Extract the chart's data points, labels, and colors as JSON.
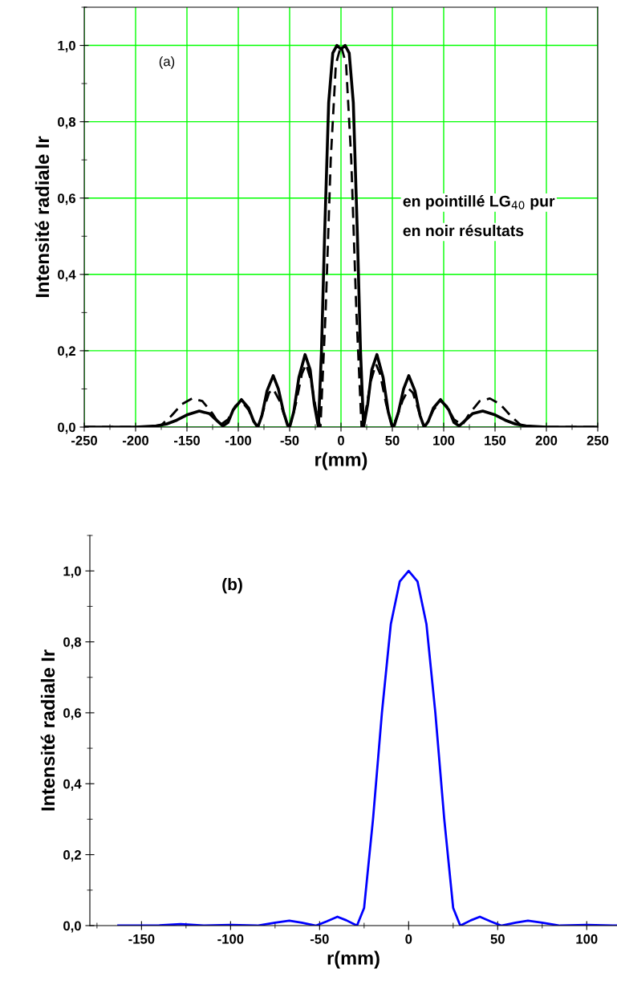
{
  "chart_data": [
    {
      "type": "line",
      "xlabel": "r(mm)",
      "ylabel": "Intensité radiale Ir",
      "grid": true,
      "xlim": [
        -250,
        250
      ],
      "ylim": [
        0,
        1.1
      ],
      "xticks": [
        -250,
        -200,
        -150,
        -100,
        -50,
        0,
        50,
        100,
        150,
        200,
        250
      ],
      "yticks": [
        {
          "value": 0,
          "label": "0,0"
        },
        {
          "value": 0.2,
          "label": "0,2"
        },
        {
          "value": 0.4,
          "label": "0,4"
        },
        {
          "value": 0.6,
          "label": "0,6"
        },
        {
          "value": 0.8,
          "label": "0,8"
        },
        {
          "value": 1.0,
          "label": "1,0"
        }
      ],
      "annotations": [
        "(a)",
        "en pointillé LG$_{40}$ pur",
        "en noir résultats"
      ],
      "series": [
        {
          "color": "#000000",
          "line_style": "solid",
          "x": [
            -250,
            -200,
            -180,
            -170,
            -160,
            -150,
            -138,
            -128,
            -120,
            -115,
            -110,
            -105,
            -97,
            -90,
            -85,
            -81,
            -77,
            -72,
            -66,
            -61,
            -56,
            -52,
            -50,
            -46,
            -41,
            -35,
            -30,
            -26,
            -22,
            -19,
            -16,
            -12,
            -8,
            -4,
            0,
            4,
            8,
            12,
            16,
            19,
            22,
            26,
            30,
            35,
            41,
            46,
            50,
            52,
            56,
            61,
            66,
            72,
            77,
            81,
            85,
            90,
            97,
            105,
            110,
            115,
            120,
            128,
            138,
            150,
            160,
            170,
            180,
            200,
            250
          ],
          "values": [
            0,
            0,
            0.003,
            0.008,
            0.018,
            0.032,
            0.042,
            0.035,
            0.015,
            0.003,
            0.012,
            0.045,
            0.072,
            0.05,
            0.015,
            0,
            0.03,
            0.095,
            0.135,
            0.1,
            0.04,
            0.005,
            0,
            0.04,
            0.13,
            0.19,
            0.15,
            0.06,
            0,
            0.2,
            0.5,
            0.85,
            0.98,
            1.0,
            0.99,
            1.0,
            0.98,
            0.85,
            0.5,
            0.2,
            0,
            0.06,
            0.15,
            0.19,
            0.13,
            0.04,
            0,
            0.005,
            0.04,
            0.1,
            0.135,
            0.095,
            0.03,
            0,
            0.015,
            0.05,
            0.072,
            0.045,
            0.012,
            0.003,
            0.015,
            0.035,
            0.042,
            0.032,
            0.018,
            0.008,
            0.003,
            0,
            0
          ]
        },
        {
          "color": "#000000",
          "line_style": "dashed",
          "x": [
            -250,
            -190,
            -175,
            -165,
            -155,
            -145,
            -135,
            -125,
            -118,
            -110,
            -103,
            -97,
            -90,
            -84,
            -81,
            -76,
            -70,
            -66,
            -60,
            -55,
            -50,
            -44,
            -38,
            -34,
            -29,
            -24,
            -20,
            -15,
            -10,
            -5,
            0,
            5,
            10,
            15,
            20,
            24,
            29,
            34,
            38,
            44,
            50,
            55,
            60,
            66,
            70,
            76,
            81,
            84,
            90,
            97,
            103,
            110,
            118,
            125,
            135,
            145,
            155,
            165,
            175,
            190,
            250
          ],
          "values": [
            0,
            0,
            0.005,
            0.03,
            0.06,
            0.075,
            0.068,
            0.035,
            0.005,
            0.02,
            0.055,
            0.068,
            0.045,
            0.01,
            0,
            0.04,
            0.09,
            0.1,
            0.07,
            0.03,
            0,
            0.06,
            0.14,
            0.165,
            0.12,
            0.04,
            0,
            0.3,
            0.7,
            0.95,
            1.0,
            0.95,
            0.7,
            0.3,
            0,
            0.04,
            0.12,
            0.165,
            0.14,
            0.06,
            0,
            0.03,
            0.07,
            0.1,
            0.09,
            0.04,
            0,
            0.01,
            0.045,
            0.068,
            0.055,
            0.02,
            0.005,
            0.035,
            0.068,
            0.075,
            0.06,
            0.03,
            0.005,
            0,
            0
          ]
        }
      ]
    },
    {
      "type": "line",
      "xlabel": "r(mm)",
      "ylabel": "Intensité radiale Ir",
      "xlim": [
        -179,
        117
      ],
      "ylim": [
        0,
        1.1
      ],
      "xticks": [
        -150,
        -100,
        -50,
        0,
        50,
        100
      ],
      "yticks": [
        {
          "value": 0,
          "label": "0,0"
        },
        {
          "value": 0.2,
          "label": "0,2"
        },
        {
          "value": 0.4,
          "label": "0,4"
        },
        {
          "value": 0.6,
          "label": "0,6"
        },
        {
          "value": 0.8,
          "label": "0,8"
        },
        {
          "value": 1.0,
          "label": "1,0"
        }
      ],
      "annotations": [
        "(b)"
      ],
      "series": [
        {
          "color": "#0000ff",
          "line_style": "solid",
          "x": [
            -163,
            -140,
            -128,
            -115,
            -100,
            -85,
            -75,
            -67,
            -60,
            -52,
            -46,
            -40,
            -35,
            -29,
            -25,
            -20,
            -15,
            -10,
            -5,
            0,
            5,
            10,
            15,
            20,
            25,
            29,
            35,
            40,
            46,
            52,
            60,
            67,
            75,
            85,
            100,
            117
          ],
          "values": [
            0,
            0.001,
            0.004,
            0,
            0.002,
            0,
            0.008,
            0.014,
            0.008,
            0,
            0.012,
            0.025,
            0.015,
            0,
            0.05,
            0.3,
            0.6,
            0.85,
            0.97,
            1.0,
            0.97,
            0.85,
            0.6,
            0.3,
            0.05,
            0,
            0.015,
            0.025,
            0.012,
            0,
            0.008,
            0.014,
            0.008,
            0,
            0.002,
            0
          ]
        }
      ]
    }
  ]
}
